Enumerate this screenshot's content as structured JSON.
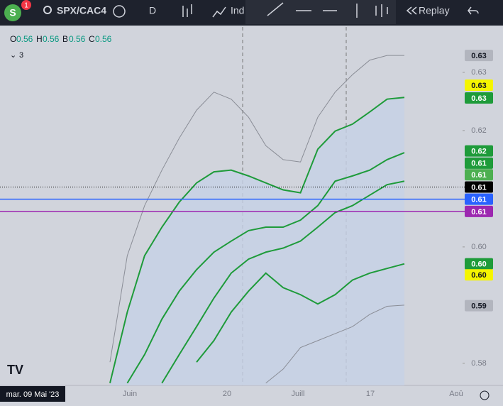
{
  "toolbar": {
    "avatar": "S",
    "badge": "1",
    "symbol": "SPX/CAC4",
    "interval": "D",
    "indicators": "Ind",
    "replay": "Replay"
  },
  "legend": {
    "items": [
      {
        "key": "O",
        "value": "0.56"
      },
      {
        "key": "H",
        "value": "0.56"
      },
      {
        "key": "B",
        "value": "0.56"
      },
      {
        "key": "C",
        "value": "0.56"
      }
    ],
    "count": "3"
  },
  "date_label": "mar. 09 Mai '23",
  "chart_data": {
    "type": "line",
    "categories": [
      null,
      null,
      null,
      null,
      null,
      null,
      null,
      null,
      null,
      null,
      null,
      null,
      null,
      null,
      null,
      null,
      null,
      null
    ],
    "x_labels": [
      "Juin",
      "20",
      "Juill",
      "17",
      "Aoû"
    ],
    "ylim": [
      0.5762,
      0.6378
    ],
    "yticks": [
      0.58,
      {
        "value": 0.6,
        "label": "0.60"
      },
      0.62,
      0.63
    ],
    "series": [
      {
        "color": "#8a8d96",
        "values": [
          0.5802,
          0.5985,
          0.6071,
          0.6132,
          0.6187,
          0.6235,
          0.6266,
          0.6254,
          0.6223,
          0.6174,
          0.615,
          0.6146,
          0.6223,
          0.6266,
          0.6296,
          0.6321,
          0.6329,
          0.6329
        ]
      },
      {
        "color": "#1e9b3a",
        "values": [
          0.5766,
          0.5888,
          0.5985,
          0.6034,
          0.6077,
          0.611,
          0.6129,
          0.6132,
          0.6122,
          0.611,
          0.6098,
          0.6093,
          0.6168,
          0.6199,
          0.6211,
          0.6232,
          0.6254,
          0.6257
        ]
      },
      {
        "color": "#1e9b3a",
        "values": [
          null,
          0.5766,
          0.5815,
          0.5876,
          0.5924,
          0.5961,
          0.5991,
          0.601,
          0.6028,
          0.6034,
          0.6034,
          0.6046,
          0.6071,
          0.6113,
          0.6122,
          0.6132,
          0.615,
          0.6162
        ]
      },
      {
        "color": "#1e9b3a",
        "values": [
          null,
          null,
          null,
          0.5766,
          0.5815,
          0.5863,
          0.5912,
          0.5955,
          0.5979,
          0.5991,
          0.5998,
          0.601,
          0.6034,
          0.6059,
          0.6071,
          0.6089,
          0.6107,
          0.6113
        ]
      },
      {
        "color": "#1e9b3a",
        "values": [
          null,
          null,
          null,
          null,
          null,
          0.5802,
          0.5839,
          0.5888,
          0.5924,
          0.5955,
          0.593,
          0.5918,
          0.5902,
          0.5918,
          0.5943,
          0.5955,
          0.5963,
          0.5971
        ]
      },
      {
        "color": "#8a8d96",
        "values": [
          null,
          null,
          null,
          null,
          null,
          null,
          null,
          null,
          null,
          0.5766,
          0.579,
          0.5827,
          0.5839,
          0.5851,
          0.5863,
          0.5884,
          0.5898,
          0.59
        ]
      }
    ],
    "price_tags": [
      {
        "value": 0.6329,
        "label": "0.63",
        "bg": "#b2b5be",
        "fg": "#131722"
      },
      {
        "value": 0.6278,
        "label": "0.63",
        "bg": "#f5f500",
        "fg": "#131722"
      },
      {
        "value": 0.6256,
        "label": "0.63",
        "bg": "#1e9b3a",
        "fg": "#ffffff"
      },
      {
        "value": 0.6165,
        "label": "0.62",
        "bg": "#1e9b3a",
        "fg": "#ffffff"
      },
      {
        "value": 0.6144,
        "label": "0.61",
        "bg": "#1e9b3a",
        "fg": "#ffffff"
      },
      {
        "value": 0.6124,
        "label": "0.61",
        "bg": "#4caf50",
        "fg": "#ffffff"
      },
      {
        "value": 0.6103,
        "label": "0.61",
        "bg": "#000000",
        "fg": "#ffffff",
        "line": "dotted"
      },
      {
        "value": 0.6082,
        "label": "0.61",
        "bg": "#2962ff",
        "fg": "#ffffff",
        "line": "solid"
      },
      {
        "value": 0.6061,
        "label": "0.61",
        "bg": "#9c27b0",
        "fg": "#ffffff",
        "line": "solid"
      },
      {
        "value": 0.5971,
        "label": "0.60",
        "bg": "#1e9b3a",
        "fg": "#ffffff"
      },
      {
        "value": 0.5952,
        "label": "0.60",
        "bg": "#f5f500",
        "fg": "#131722"
      },
      {
        "value": 0.5899,
        "label": "0.59",
        "bg": "#b2b5be",
        "fg": "#131722"
      }
    ]
  }
}
